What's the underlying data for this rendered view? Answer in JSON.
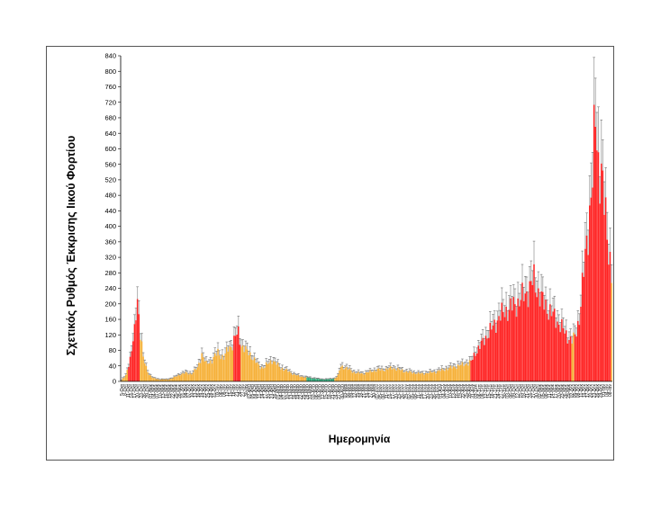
{
  "chart_data": {
    "type": "bar",
    "title": "",
    "xlabel": "Ημερομηνία",
    "ylabel": "Σχετικός Ρυθμός Έκκρισης Ιικού Φορτίου",
    "ylim": [
      0,
      840
    ],
    "yticks": [
      0,
      40,
      80,
      120,
      160,
      200,
      240,
      280,
      320,
      360,
      400,
      440,
      480,
      520,
      560,
      600,
      640,
      680,
      720,
      760,
      800,
      840
    ],
    "grid": false,
    "legend": "none",
    "error_bar_color": "#a9a9a9",
    "phase_colors": {
      "high": "#ff2424",
      "medium": "#f6b13a",
      "low": "#2eaa7a"
    },
    "segments": [
      {
        "start": 0,
        "end": 5,
        "phase": "medium"
      },
      {
        "start": 5,
        "end": 13,
        "phase": "high"
      },
      {
        "start": 13,
        "end": 77,
        "phase": "medium"
      },
      {
        "start": 77,
        "end": 82,
        "phase": "high"
      },
      {
        "start": 82,
        "end": 127,
        "phase": "medium"
      },
      {
        "start": 127,
        "end": 146,
        "phase": "low"
      },
      {
        "start": 146,
        "end": 239,
        "phase": "medium"
      },
      {
        "start": 239,
        "end": 308,
        "phase": "high"
      },
      {
        "start": 308,
        "end": 310,
        "phase": "medium"
      },
      {
        "start": 310,
        "end": 335,
        "phase": "high"
      }
    ],
    "keypoints": [
      [
        0,
        3
      ],
      [
        3,
        15
      ],
      [
        6,
        60
      ],
      [
        9,
        125
      ],
      [
        11,
        215
      ],
      [
        13,
        130
      ],
      [
        15,
        60
      ],
      [
        17,
        35
      ],
      [
        19,
        18
      ],
      [
        22,
        8
      ],
      [
        26,
        5
      ],
      [
        32,
        5
      ],
      [
        36,
        10
      ],
      [
        40,
        18
      ],
      [
        44,
        22
      ],
      [
        48,
        20
      ],
      [
        52,
        35
      ],
      [
        55,
        70
      ],
      [
        58,
        45
      ],
      [
        62,
        55
      ],
      [
        66,
        75
      ],
      [
        70,
        60
      ],
      [
        73,
        85
      ],
      [
        76,
        95
      ],
      [
        78,
        115
      ],
      [
        80,
        125
      ],
      [
        82,
        95
      ],
      [
        85,
        80
      ],
      [
        88,
        70
      ],
      [
        91,
        55
      ],
      [
        94,
        40
      ],
      [
        97,
        35
      ],
      [
        100,
        45
      ],
      [
        103,
        55
      ],
      [
        106,
        45
      ],
      [
        109,
        35
      ],
      [
        112,
        30
      ],
      [
        116,
        22
      ],
      [
        120,
        15
      ],
      [
        124,
        12
      ],
      [
        127,
        10
      ],
      [
        131,
        8
      ],
      [
        135,
        6
      ],
      [
        139,
        5
      ],
      [
        143,
        6
      ],
      [
        146,
        8
      ],
      [
        148,
        15
      ],
      [
        150,
        40
      ],
      [
        153,
        35
      ],
      [
        156,
        30
      ],
      [
        160,
        22
      ],
      [
        165,
        20
      ],
      [
        170,
        25
      ],
      [
        175,
        30
      ],
      [
        180,
        30
      ],
      [
        185,
        35
      ],
      [
        190,
        30
      ],
      [
        195,
        25
      ],
      [
        200,
        22
      ],
      [
        205,
        20
      ],
      [
        210,
        22
      ],
      [
        215,
        25
      ],
      [
        220,
        30
      ],
      [
        225,
        35
      ],
      [
        230,
        40
      ],
      [
        235,
        45
      ],
      [
        239,
        50
      ],
      [
        242,
        75
      ],
      [
        246,
        95
      ],
      [
        250,
        120
      ],
      [
        254,
        140
      ],
      [
        258,
        165
      ],
      [
        262,
        180
      ],
      [
        266,
        190
      ],
      [
        270,
        200
      ],
      [
        274,
        215
      ],
      [
        278,
        235
      ],
      [
        282,
        260
      ],
      [
        285,
        230
      ],
      [
        288,
        205
      ],
      [
        292,
        185
      ],
      [
        296,
        165
      ],
      [
        300,
        145
      ],
      [
        304,
        120
      ],
      [
        308,
        105
      ],
      [
        310,
        115
      ],
      [
        313,
        165
      ],
      [
        316,
        280
      ],
      [
        319,
        400
      ],
      [
        322,
        520
      ],
      [
        324,
        680
      ],
      [
        326,
        570
      ],
      [
        328,
        540
      ],
      [
        330,
        450
      ],
      [
        333,
        350
      ],
      [
        335,
        280
      ]
    ],
    "x_categories": [
      "5-Οκτ",
      "8-Οκτ",
      "11-Οκτ",
      "14-Οκτ",
      "17-Οκτ",
      "20-Οκτ",
      "23-Οκτ",
      "26-Οκτ",
      "29-Οκτ",
      "01-Νοε",
      "04-Νοε",
      "07-Νοε",
      "10-Νοε",
      "13-Νοε",
      "16-Νοε",
      "19-Νοε",
      "22-Νοε",
      "25-Νοε",
      "28-Νοε",
      "01-Δεκ",
      "04-Δεκ",
      "07-Δεκ",
      "10-Δεκ",
      "13-Δεκ",
      "16-Δεκ",
      "19-Δεκ",
      "22-Δεκ",
      "25-Δεκ",
      "28-Δεκ",
      "31-Δεκ",
      "03-Ιαν",
      "06-Ιαν",
      "09-Ιαν",
      "12-Ιαν",
      "15-Ιαν",
      "18-Ιαν",
      "21-Ιαν",
      "24-Ιαν",
      "27-Ιαν",
      "30-Ιαν",
      "02-Φεβ",
      "05-Φεβ",
      "08-Φεβ",
      "11-Φεβ",
      "14-Φεβ",
      "17-Φεβ",
      "20-Φεβ",
      "23-Φεβ",
      "26-Φεβ",
      "01-Μαρ",
      "04-Μαρ",
      "07-Μαρ",
      "10-Μαρ",
      "13-Μαρ",
      "16-Μαρ",
      "19-Μαρ",
      "22-Μαρ",
      "25-Μαρ",
      "28-Μαρ",
      "31-Μαρ",
      "03-Απρ",
      "06-Απρ",
      "09-Απρ",
      "12-Απρ",
      "15-Απρ",
      "18-Απρ",
      "21-Απρ",
      "24-Απρ",
      "27-Απρ",
      "30-Απρ",
      "03-Μαϊ",
      "06-Μαϊ",
      "09-Μαϊ",
      "12-Μαϊ",
      "15-Μαϊ",
      "18-Μαϊ",
      "21-Μαϊ",
      "24-Μαϊ",
      "27-Μαϊ",
      "30-Μαϊ",
      "02-Ιουν",
      "05-Ιουν",
      "08-Ιουν",
      "11-Ιουν",
      "14-Ιουν",
      "17-Ιουν",
      "20-Ιουν",
      "23-Ιουν",
      "26-Ιουν",
      "29-Ιουν",
      "02-Ιουλ",
      "05-Ιουλ",
      "08-Ιουλ",
      "11-Ιουλ",
      "14-Ιουλ",
      "17-Ιουλ",
      "20-Ιουλ",
      "23-Ιουλ",
      "26-Ιουλ",
      "29-Ιουλ",
      "01-Αυγ",
      "04-Αυγ",
      "07-Αυγ",
      "10-Αυγ",
      "13-Αυγ",
      "16-Αυγ",
      "19-Αυγ",
      "22-Αυγ",
      "25-Αυγ",
      "28-Αυγ",
      "31-Αυγ",
      "03-Σεπ",
      "06-Σεπ",
      "09-Σεπ",
      "12-Σεπ",
      "15-Σεπ",
      "18-Σεπ",
      "21-Σεπ",
      "24-Σεπ",
      "27-Σεπ",
      "30-Σεπ",
      "03-Οκτ",
      "06-Οκτ",
      "09-Οκτ",
      "12-Οκτ",
      "15-Οκτ",
      "18-Οκτ",
      "21-Οκτ",
      "24-Οκτ",
      "27-Οκτ",
      "30-Οκτ",
      "02-Νοε",
      "05-Νοε",
      "08-Νοε",
      "11-Νοε",
      "14-Νοε",
      "17-Νοε",
      "20-Νοε",
      "23-Νοε",
      "26-Νοε",
      "29-Νοε",
      "02-Δεκ",
      "05-Δεκ",
      "08-Δεκ",
      "11-Δεκ",
      "14-Δεκ",
      "17-Δεκ",
      "20-Δεκ",
      "23-Δεκ",
      "26-Δεκ",
      "29-Δεκ",
      "01-Ιαν",
      "04-Ιαν",
      "08-Ιαν"
    ]
  }
}
